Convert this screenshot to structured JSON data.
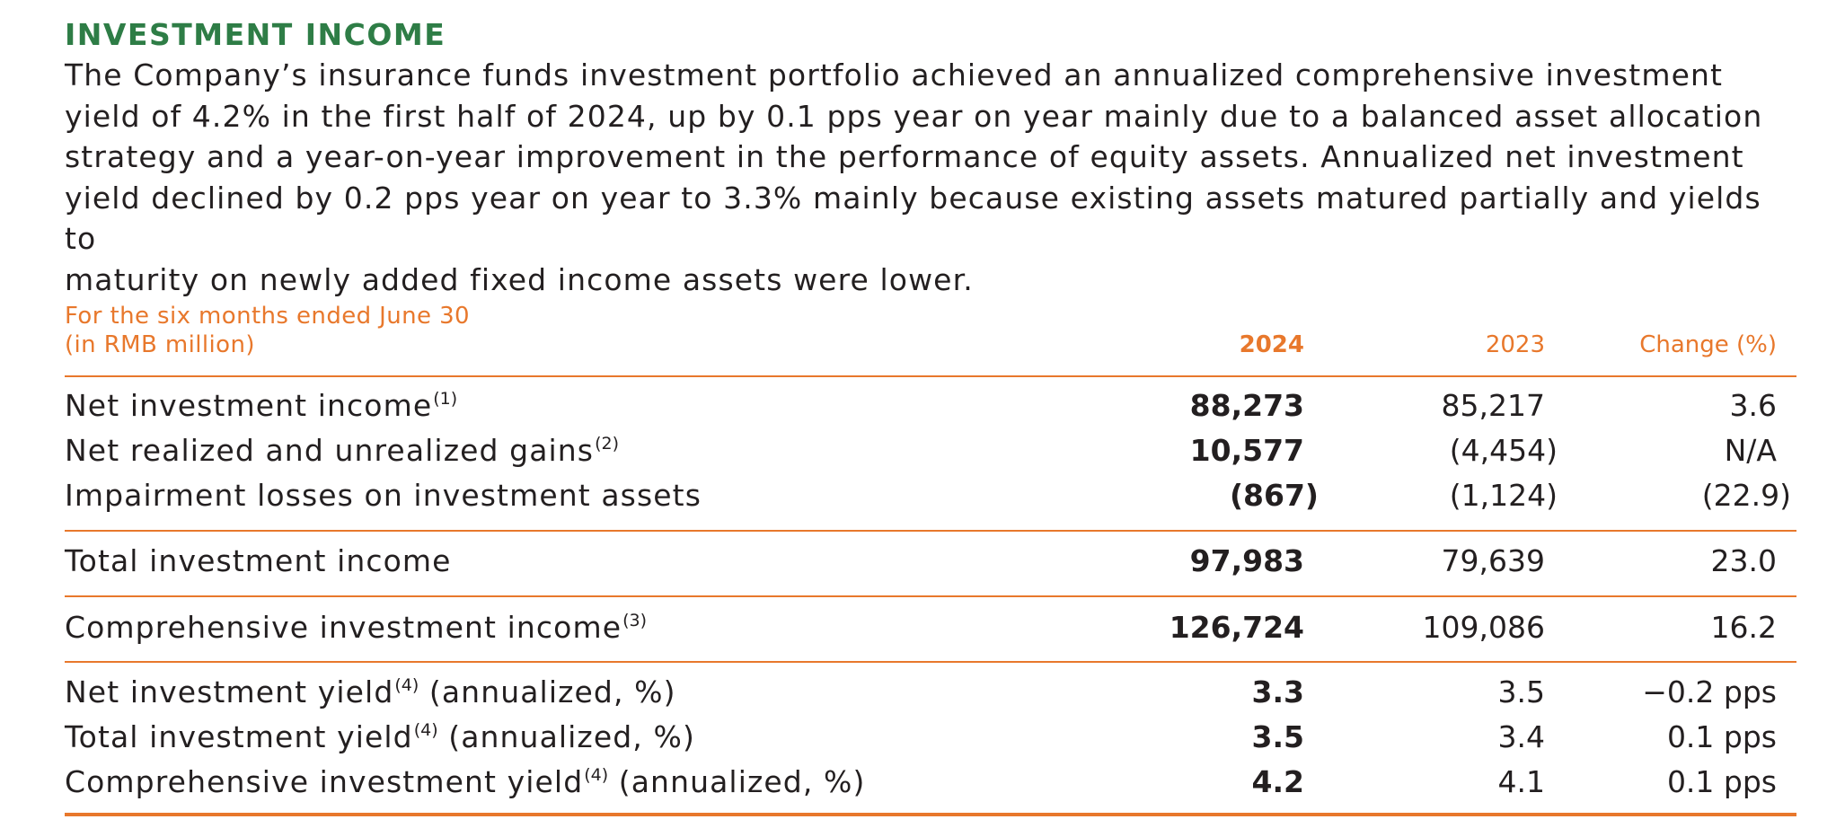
{
  "section": {
    "heading": "INVESTMENT INCOME",
    "intro_lines": [
      "The Company’s insurance funds investment portfolio achieved an annualized comprehensive investment",
      "yield of 4.2% in the first half of 2024, up by 0.1 pps year on year mainly due to a balanced asset allocation",
      "strategy and a year-on-year improvement in the performance of equity assets. Annualized net investment",
      "yield declined by 0.2 pps year on year to 3.3% mainly because existing assets matured partially and yields to",
      "maturity on newly added fixed income assets were lower."
    ]
  },
  "table": {
    "caption_line1": "For the six months ended June 30",
    "caption_line2": "(in RMB million)",
    "columns": {
      "current": "2024",
      "prior": "2023",
      "change": "Change (%)"
    },
    "rows": [
      {
        "label": "Net investment income",
        "note": "(1)",
        "suffix": "",
        "current": "88,273",
        "prior": "85,217",
        "change": "3.6"
      },
      {
        "label": "Net realized and unrealized gains",
        "note": "(2)",
        "suffix": "",
        "current": "10,577",
        "prior": "(4,454)",
        "change": "N/A"
      },
      {
        "label": "Impairment losses on investment assets",
        "note": "",
        "suffix": "",
        "current": "(867)",
        "prior": "(1,124)",
        "change": "(22.9)"
      },
      {
        "label": "Total investment income",
        "note": "",
        "suffix": "",
        "current": "97,983",
        "prior": "79,639",
        "change": "23.0"
      },
      {
        "label": "Comprehensive investment income",
        "note": "(3)",
        "suffix": "",
        "current": "126,724",
        "prior": "109,086",
        "change": "16.2"
      },
      {
        "label": "Net investment yield",
        "note": "(4)",
        "suffix": " (annualized, %)",
        "current": "3.3",
        "prior": "3.5",
        "change": "−0.2 pps"
      },
      {
        "label": "Total investment yield",
        "note": "(4)",
        "suffix": " (annualized, %)",
        "current": "3.5",
        "prior": "3.4",
        "change": "0.1 pps"
      },
      {
        "label": "Comprehensive investment yield",
        "note": "(4)",
        "suffix": " (annualized, %)",
        "current": "4.2",
        "prior": "4.1",
        "change": "0.1 pps"
      }
    ]
  },
  "colors": {
    "heading_green": "#2e7d46",
    "accent_orange": "#e8782c",
    "text": "#231f20"
  }
}
